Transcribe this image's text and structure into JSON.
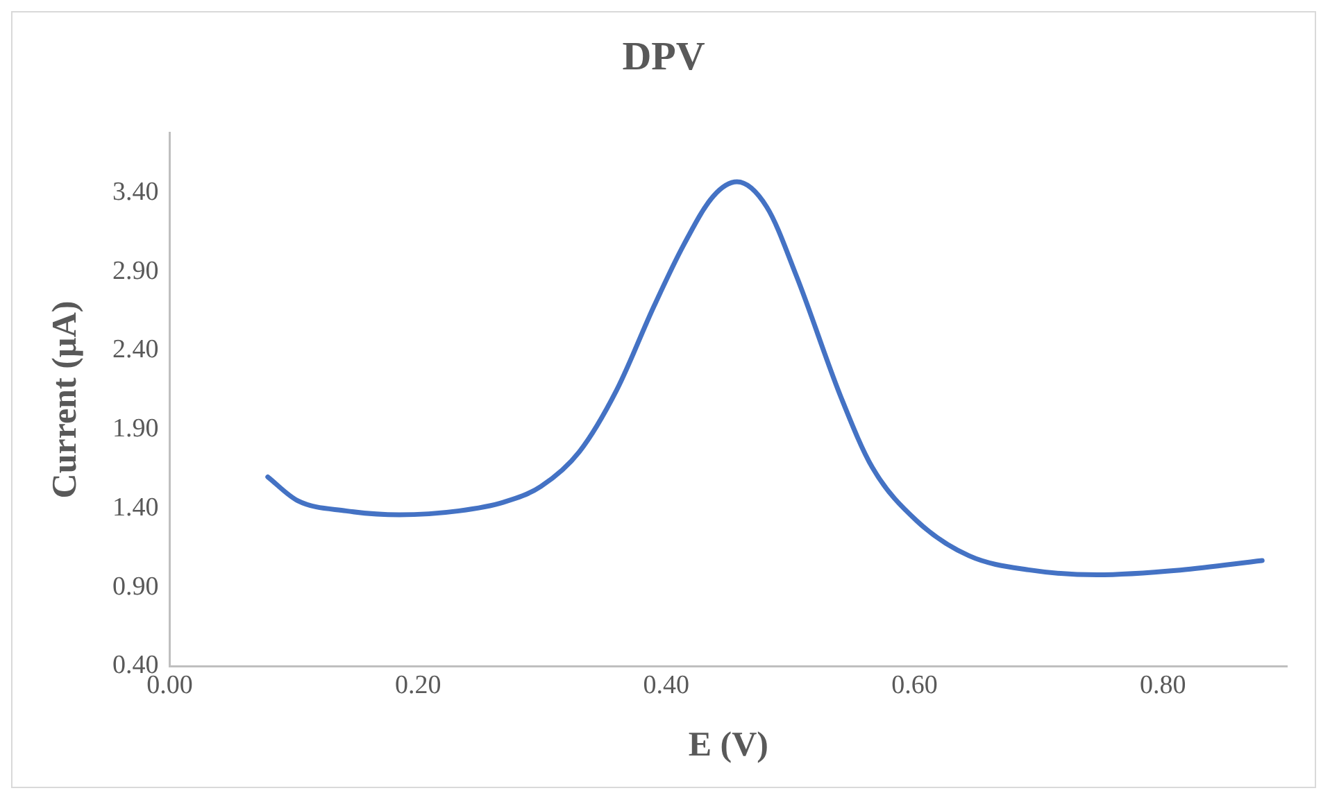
{
  "chart_data": {
    "type": "line",
    "title": "DPV",
    "xlabel": "E (V)",
    "ylabel": "Current (µA)",
    "xlim": [
      0,
      0.9
    ],
    "xticks": [
      {
        "value": 0,
        "label": "0.00"
      },
      {
        "value": 0.2,
        "label": "0.20"
      },
      {
        "value": 0.4,
        "label": "0.40"
      },
      {
        "value": 0.6,
        "label": "0.60"
      },
      {
        "value": 0.8,
        "label": "0.80"
      }
    ],
    "ylim": [
      0.4,
      3.78
    ],
    "yticks": [
      {
        "value": 0.4,
        "label": "0.40"
      },
      {
        "value": 0.9,
        "label": "0.90"
      },
      {
        "value": 1.4,
        "label": "1.40"
      },
      {
        "value": 1.9,
        "label": "1.90"
      },
      {
        "value": 2.4,
        "label": "2.40"
      },
      {
        "value": 2.9,
        "label": "2.90"
      },
      {
        "value": 3.4,
        "label": "3.40"
      }
    ],
    "grid": false,
    "legend": false,
    "marker": "none",
    "line_style": "solid",
    "series": [
      {
        "color": "#4472c4",
        "x": [
          0.079,
          0.103,
          0.142,
          0.185,
          0.233,
          0.269,
          0.299,
          0.33,
          0.36,
          0.39,
          0.414,
          0.438,
          0.457,
          0.481,
          0.505,
          0.541,
          0.566,
          0.602,
          0.644,
          0.693,
          0.747,
          0.814,
          0.88
        ],
        "values": [
          1.6,
          1.45,
          1.385,
          1.36,
          1.385,
          1.44,
          1.54,
          1.76,
          2.15,
          2.68,
          3.07,
          3.38,
          3.47,
          3.31,
          2.87,
          2.1,
          1.66,
          1.32,
          1.1,
          1.01,
          0.98,
          1.01,
          1.07
        ]
      }
    ]
  }
}
